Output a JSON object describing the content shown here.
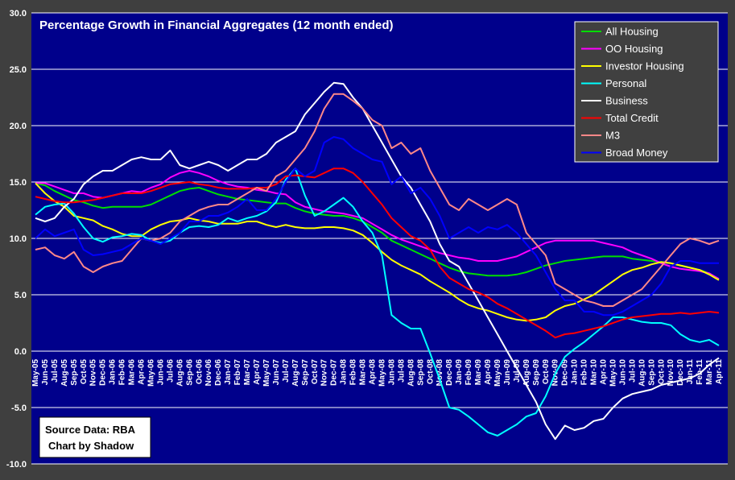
{
  "chart_data": {
    "type": "line",
    "title": "Percentage Growth in Financial Aggregates (12 month ended)",
    "xlabel": "",
    "ylabel": "",
    "ylim": [
      -10,
      30
    ],
    "yticks": [
      "30.0",
      "25.0",
      "20.0",
      "15.0",
      "10.0",
      "5.0",
      "0.0",
      "-5.0",
      "-10.0"
    ],
    "grid": true,
    "legend_position": "top-right",
    "categories": [
      "May-05",
      "Jun-05",
      "Jul-05",
      "Aug-05",
      "Sep-05",
      "Oct-05",
      "Nov-05",
      "Dec-05",
      "Jan-06",
      "Feb-06",
      "Mar-06",
      "Apr-06",
      "May-06",
      "Jun-06",
      "Jul-06",
      "Aug-06",
      "Sep-06",
      "Oct-06",
      "Nov-06",
      "Dec-06",
      "Jan-07",
      "Feb-07",
      "Mar-07",
      "Apr-07",
      "May-07",
      "Jun-07",
      "Jul-07",
      "Aug-07",
      "Sep-07",
      "Oct-07",
      "Nov-07",
      "Dec-07",
      "Jan-08",
      "Feb-08",
      "Mar-08",
      "Apr-08",
      "May-08",
      "Jun-08",
      "Jul-08",
      "Aug-08",
      "Sep-08",
      "Oct-08",
      "Nov-08",
      "Dec-08",
      "Jan-09",
      "Feb-09",
      "Mar-09",
      "Apr-09",
      "May-09",
      "Jun-09",
      "Jul-09",
      "Aug-09",
      "Sep-09",
      "Oct-09",
      "Nov-09",
      "Dec-09",
      "Jan-10",
      "Feb-10",
      "Mar-10",
      "Apr-10",
      "May-10",
      "Jun-10",
      "Jul-10",
      "Aug-10",
      "Sep-10",
      "Oct-10",
      "Nov-10",
      "Dec-10",
      "Jan-11",
      "Feb-11",
      "Mar-11",
      "Apr-11"
    ],
    "series": [
      {
        "name": "All Housing",
        "color": "#00dd00",
        "values": [
          14.9,
          14.7,
          14.2,
          13.8,
          13.4,
          13.2,
          12.9,
          12.7,
          12.8,
          12.8,
          12.8,
          12.8,
          13.0,
          13.4,
          13.8,
          14.2,
          14.4,
          14.5,
          14.2,
          13.9,
          13.7,
          13.5,
          13.4,
          13.3,
          13.2,
          13.1,
          13.1,
          12.7,
          12.4,
          12.2,
          12.1,
          12.0,
          12.0,
          11.8,
          11.5,
          11.0,
          10.5,
          9.8,
          9.4,
          9.0,
          8.6,
          8.2,
          7.8,
          7.4,
          7.1,
          6.9,
          6.8,
          6.7,
          6.7,
          6.7,
          6.8,
          7.0,
          7.3,
          7.6,
          7.8,
          8.0,
          8.1,
          8.2,
          8.3,
          8.4,
          8.4,
          8.4,
          8.2,
          8.1,
          8.0,
          7.9,
          7.8,
          7.6,
          7.4,
          7.2,
          6.9,
          6.4
        ]
      },
      {
        "name": "OO Housing",
        "color": "#ff00ff",
        "values": [
          14.9,
          14.9,
          14.6,
          14.3,
          14.0,
          14.0,
          13.7,
          13.6,
          13.8,
          14.0,
          14.2,
          14.1,
          14.5,
          14.8,
          15.4,
          15.8,
          16.0,
          15.8,
          15.5,
          15.1,
          14.8,
          14.6,
          14.5,
          14.3,
          14.2,
          14.0,
          13.9,
          13.2,
          12.8,
          12.6,
          12.4,
          12.3,
          12.2,
          12.0,
          11.8,
          11.3,
          10.8,
          10.3,
          9.9,
          9.6,
          9.3,
          9.0,
          8.7,
          8.5,
          8.3,
          8.2,
          8.0,
          8.0,
          8.0,
          8.2,
          8.4,
          8.8,
          9.2,
          9.6,
          9.8,
          9.8,
          9.8,
          9.8,
          9.8,
          9.6,
          9.4,
          9.2,
          8.8,
          8.5,
          8.2,
          7.8,
          7.5,
          7.3,
          7.2,
          7.1,
          6.9,
          6.4
        ]
      },
      {
        "name": "Investor Housing",
        "color": "#ffff00",
        "values": [
          14.9,
          14.0,
          13.3,
          12.8,
          12.0,
          11.8,
          11.6,
          11.1,
          10.8,
          10.4,
          10.2,
          10.2,
          10.8,
          11.2,
          11.5,
          11.6,
          11.8,
          11.6,
          11.5,
          11.3,
          11.3,
          11.3,
          11.5,
          11.5,
          11.2,
          11.0,
          11.2,
          11.0,
          10.9,
          10.9,
          11.0,
          11.0,
          10.9,
          10.7,
          10.3,
          9.6,
          8.8,
          8.1,
          7.6,
          7.2,
          6.8,
          6.2,
          5.7,
          5.2,
          4.6,
          4.1,
          3.8,
          3.6,
          3.3,
          3.0,
          2.8,
          2.7,
          2.8,
          3.0,
          3.6,
          4.0,
          4.2,
          4.6,
          5.0,
          5.6,
          6.2,
          6.8,
          7.2,
          7.4,
          7.7,
          7.9,
          7.8,
          7.6,
          7.4,
          7.2,
          6.8,
          6.3
        ]
      },
      {
        "name": "Personal",
        "color": "#00ffff",
        "values": [
          12.1,
          12.8,
          13.0,
          13.1,
          12.2,
          11.0,
          10.0,
          9.7,
          10.1,
          10.2,
          10.4,
          10.3,
          9.8,
          9.6,
          9.8,
          10.5,
          11.0,
          11.1,
          11.0,
          11.2,
          11.8,
          11.5,
          11.8,
          12.0,
          12.4,
          13.2,
          15.2,
          16.2,
          13.8,
          12.0,
          12.4,
          13.0,
          13.6,
          12.8,
          11.5,
          10.5,
          8.5,
          3.2,
          2.5,
          2.0,
          2.0,
          -0.2,
          -2.5,
          -5.0,
          -5.2,
          -5.8,
          -6.5,
          -7.2,
          -7.5,
          -7.0,
          -6.5,
          -5.8,
          -5.5,
          -4.0,
          -2.0,
          -0.5,
          0.2,
          0.8,
          1.5,
          2.2,
          3.0,
          3.0,
          2.8,
          2.6,
          2.5,
          2.5,
          2.3,
          1.5,
          1.0,
          0.8,
          1.0,
          0.5
        ]
      },
      {
        "name": "Business",
        "color": "#ffffff",
        "values": [
          11.8,
          11.5,
          11.8,
          12.8,
          13.5,
          14.8,
          15.5,
          16.0,
          16.0,
          16.5,
          17.0,
          17.2,
          17.0,
          17.0,
          17.8,
          16.5,
          16.2,
          16.5,
          16.8,
          16.5,
          16.0,
          16.5,
          17.0,
          17.0,
          17.5,
          18.5,
          19.0,
          19.5,
          21.0,
          22.0,
          23.0,
          23.8,
          23.7,
          22.5,
          21.5,
          20.0,
          18.5,
          17.0,
          15.5,
          14.5,
          13.0,
          11.5,
          9.5,
          8.0,
          7.5,
          6.0,
          4.5,
          3.0,
          1.5,
          0.0,
          -1.5,
          -3.0,
          -4.5,
          -6.5,
          -7.8,
          -6.6,
          -7.0,
          -6.8,
          -6.2,
          -6.0,
          -5.0,
          -4.2,
          -3.8,
          -3.6,
          -3.4,
          -3.0,
          -2.8,
          -2.6,
          -2.4,
          -2.0,
          -1.2,
          -0.6
        ]
      },
      {
        "name": "Total Credit",
        "color": "#ff0000",
        "values": [
          13.7,
          13.5,
          13.3,
          13.2,
          13.2,
          13.3,
          13.4,
          13.6,
          13.8,
          14.0,
          14.0,
          14.0,
          14.2,
          14.5,
          14.8,
          14.9,
          15.0,
          14.8,
          14.7,
          14.5,
          14.4,
          14.4,
          14.4,
          14.5,
          14.5,
          14.8,
          15.5,
          15.6,
          15.5,
          15.4,
          15.8,
          16.2,
          16.2,
          15.8,
          15.0,
          14.0,
          13.0,
          11.8,
          11.0,
          10.2,
          9.8,
          9.0,
          7.5,
          6.5,
          6.0,
          5.5,
          5.2,
          4.8,
          4.2,
          3.8,
          3.3,
          2.8,
          2.3,
          1.8,
          1.2,
          1.5,
          1.6,
          1.8,
          2.0,
          2.2,
          2.5,
          2.8,
          3.0,
          3.1,
          3.2,
          3.3,
          3.3,
          3.4,
          3.3,
          3.4,
          3.5,
          3.4
        ]
      },
      {
        "name": "M3",
        "color": "#ff8888",
        "values": [
          9.0,
          9.2,
          8.5,
          8.2,
          8.8,
          7.5,
          7.0,
          7.5,
          7.8,
          8.0,
          9.0,
          10.0,
          9.8,
          10.0,
          10.5,
          11.5,
          12.0,
          12.5,
          12.8,
          13.0,
          13.0,
          13.5,
          14.0,
          14.5,
          14.2,
          15.5,
          16.0,
          17.0,
          18.0,
          19.5,
          21.5,
          22.8,
          22.8,
          22.2,
          21.5,
          20.5,
          20.0,
          18.0,
          18.5,
          17.5,
          18.0,
          16.0,
          14.5,
          13.0,
          12.5,
          13.5,
          13.0,
          12.5,
          13.0,
          13.5,
          13.0,
          10.5,
          9.5,
          8.5,
          6.0,
          5.5,
          5.0,
          4.5,
          4.3,
          4.0,
          4.0,
          4.5,
          5.0,
          5.5,
          6.5,
          7.5,
          8.5,
          9.5,
          10.0,
          9.8,
          9.5,
          9.8
        ]
      },
      {
        "name": "Broad Money",
        "color": "#0000ff",
        "values": [
          10.0,
          10.8,
          10.2,
          10.5,
          10.8,
          9.0,
          8.5,
          8.6,
          8.8,
          9.0,
          9.5,
          10.0,
          9.8,
          9.5,
          10.0,
          10.5,
          11.5,
          11.5,
          12.0,
          12.0,
          12.3,
          12.8,
          13.5,
          12.5,
          12.5,
          13.5,
          15.0,
          16.2,
          15.5,
          16.0,
          18.5,
          19.0,
          18.8,
          18.0,
          17.5,
          17.0,
          16.8,
          14.8,
          15.5,
          14.0,
          14.5,
          13.5,
          12.0,
          10.0,
          10.5,
          11.0,
          10.5,
          11.0,
          10.8,
          11.2,
          10.5,
          9.5,
          8.5,
          7.0,
          5.5,
          4.5,
          4.5,
          3.5,
          3.5,
          3.2,
          3.2,
          3.5,
          4.0,
          4.5,
          5.0,
          6.0,
          7.5,
          8.0,
          8.0,
          7.8,
          7.8,
          7.8
        ]
      }
    ],
    "annotations": [
      "Source Data: RBA",
      "Chart by Shadow"
    ]
  }
}
